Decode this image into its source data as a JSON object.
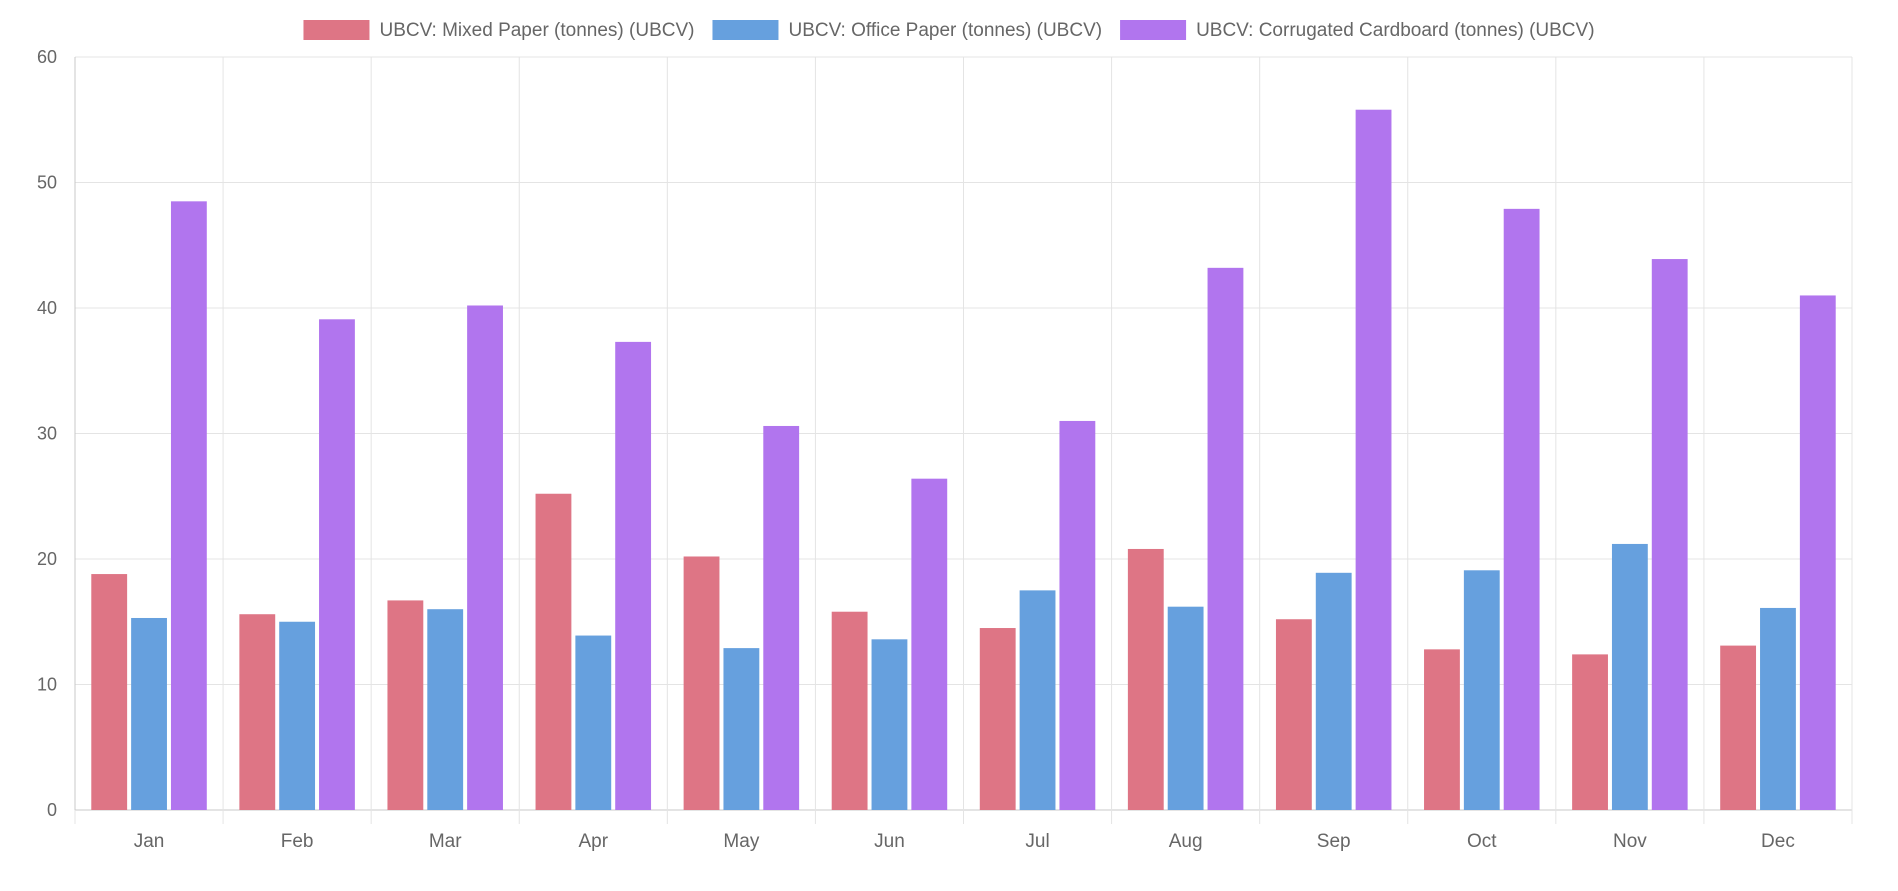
{
  "chart_data": {
    "type": "bar",
    "title": "",
    "xlabel": "",
    "ylabel": "",
    "categories": [
      "Jan",
      "Feb",
      "Mar",
      "Apr",
      "May",
      "Jun",
      "Jul",
      "Aug",
      "Sep",
      "Oct",
      "Nov",
      "Dec"
    ],
    "ylim": [
      0,
      60
    ],
    "yticks": [
      0,
      10,
      20,
      30,
      40,
      50,
      60
    ],
    "grid": true,
    "legend_position": "top",
    "series": [
      {
        "name": "UBCV: Mixed Paper (tonnes) (UBCV)",
        "color": "#de7585",
        "values": [
          18.8,
          15.6,
          16.7,
          25.2,
          20.2,
          15.8,
          14.5,
          20.8,
          15.2,
          12.8,
          12.4,
          13.1
        ]
      },
      {
        "name": "UBCV: Office Paper (tonnes) (UBCV)",
        "color": "#66a0de",
        "values": [
          15.3,
          15.0,
          16.0,
          13.9,
          12.9,
          13.6,
          17.5,
          16.2,
          18.9,
          19.1,
          21.2,
          16.1
        ]
      },
      {
        "name": "UBCV: Corrugated Cardboard (tonnes) (UBCV)",
        "color": "#b175ee",
        "values": [
          48.5,
          39.1,
          40.2,
          37.3,
          30.6,
          26.4,
          31.0,
          43.2,
          55.8,
          47.9,
          43.9,
          41.0
        ]
      }
    ]
  }
}
